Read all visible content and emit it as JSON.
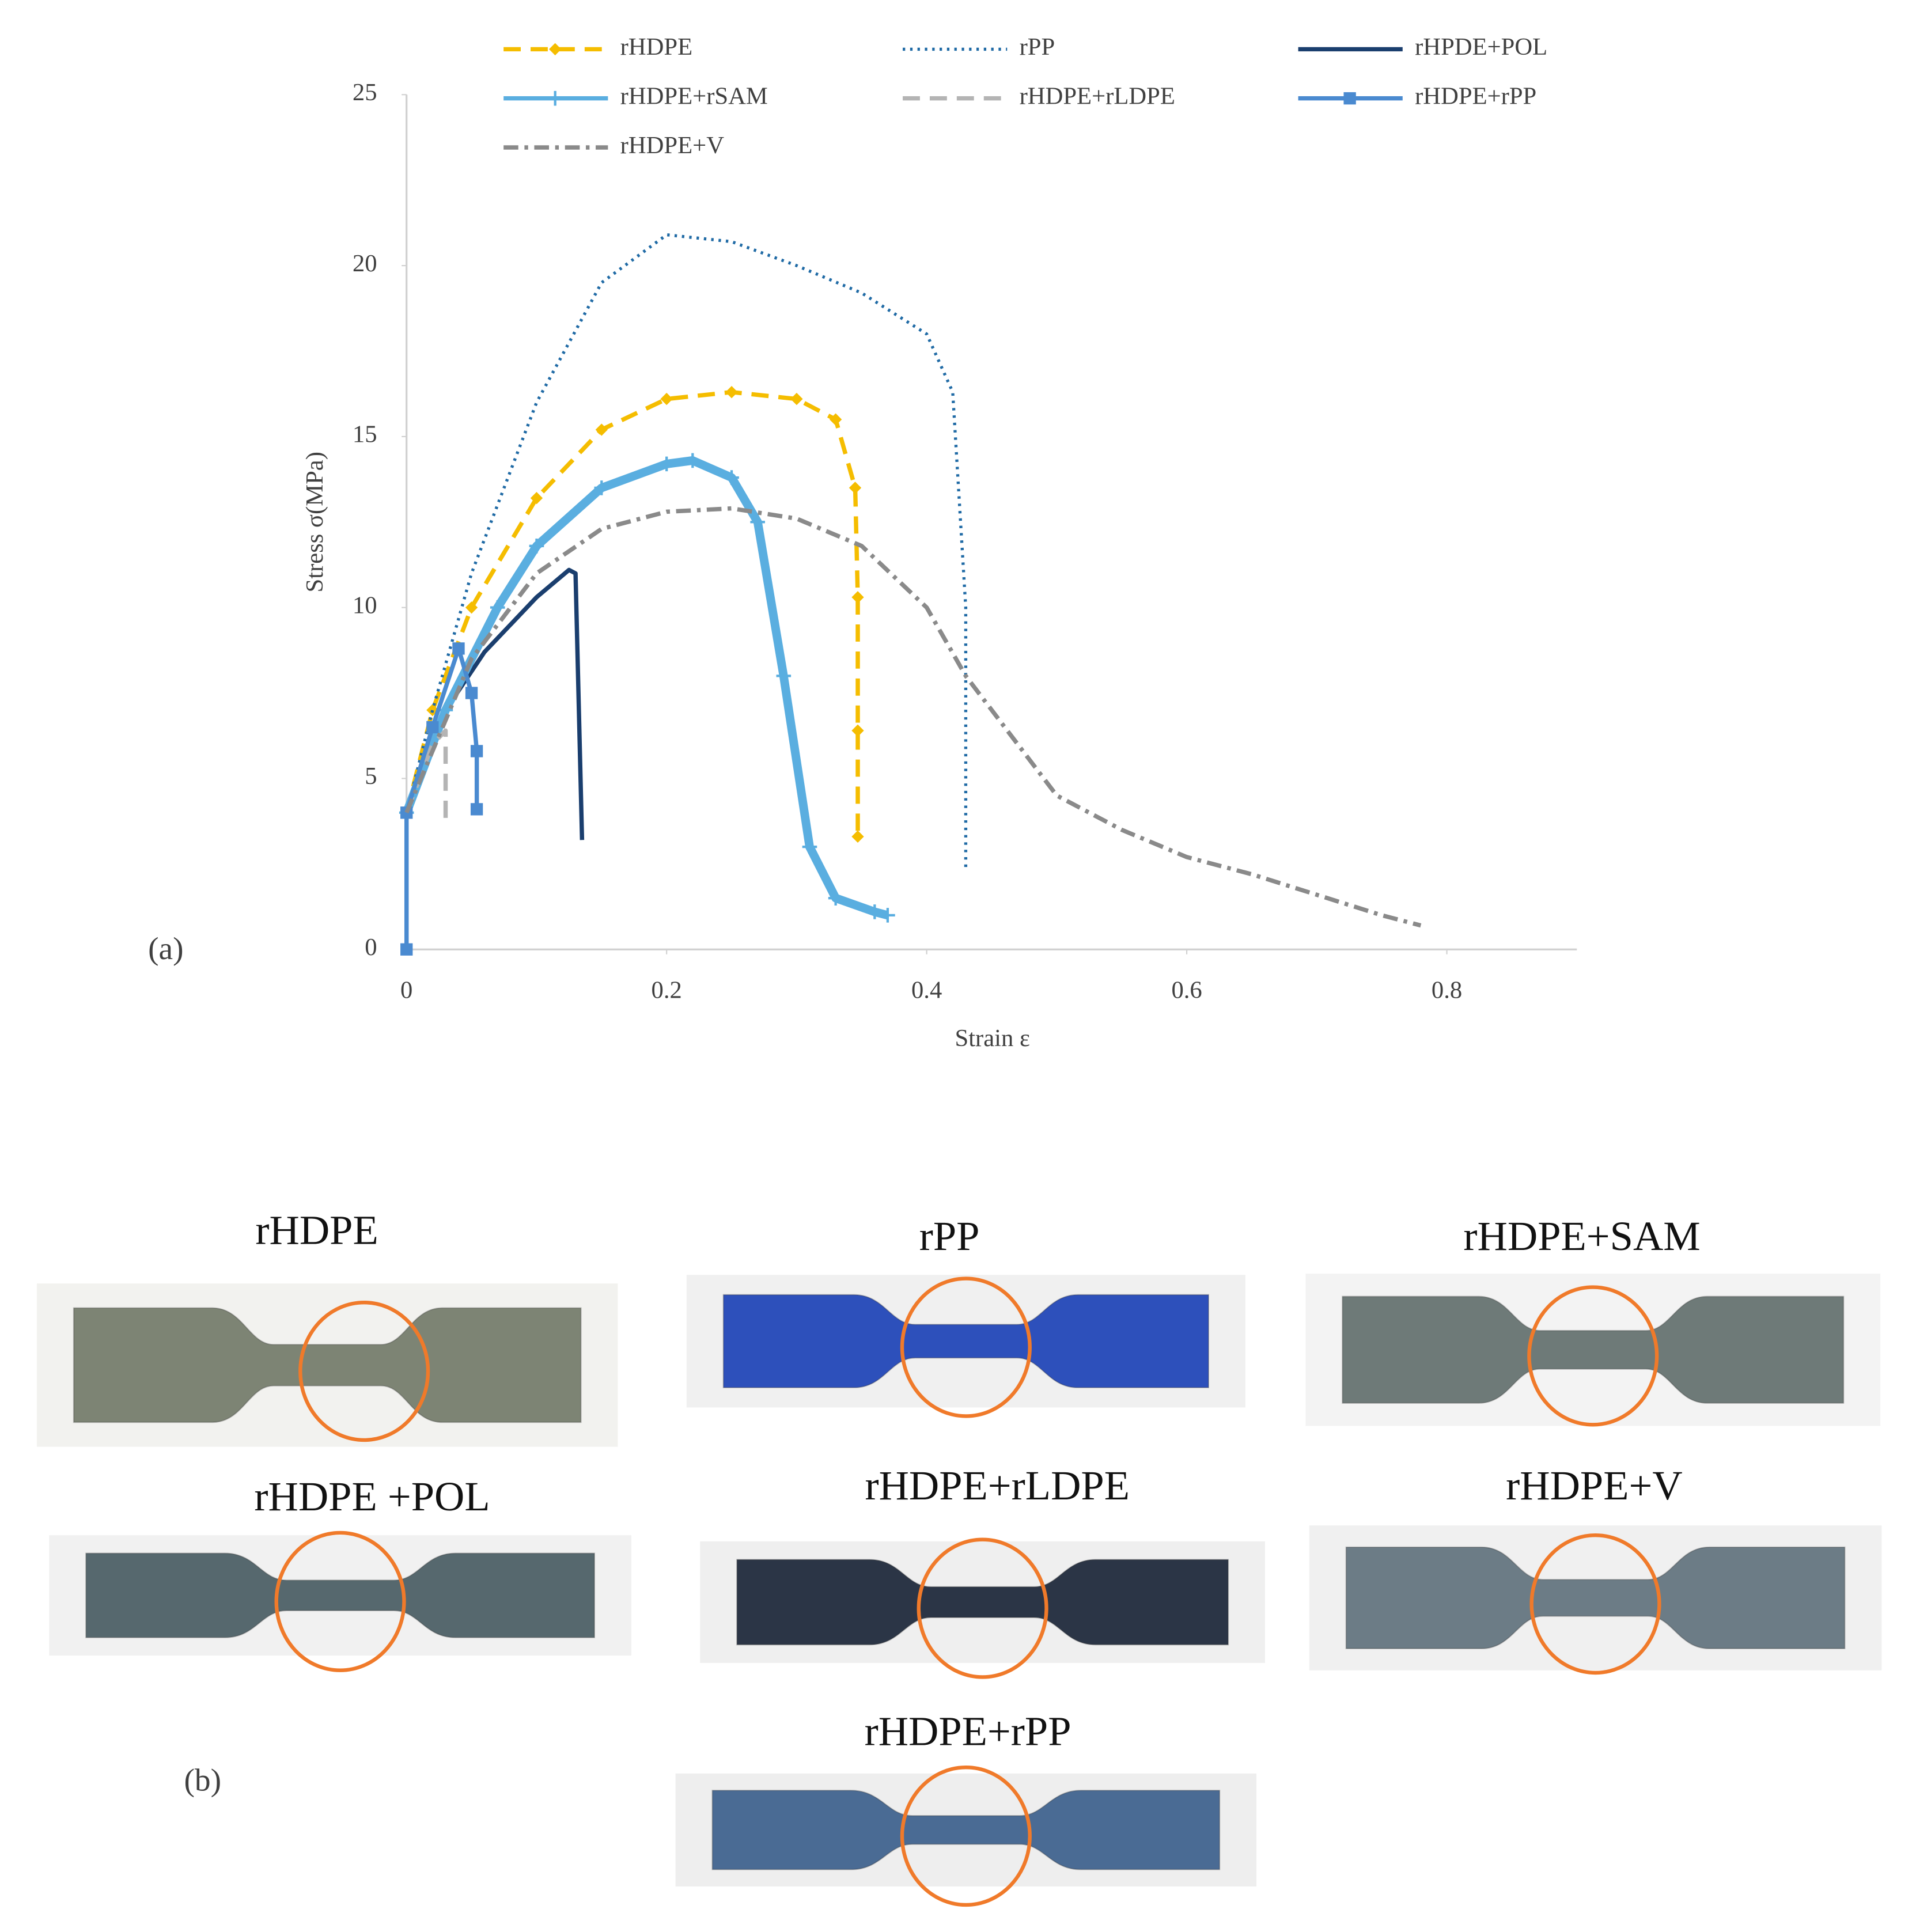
{
  "chart_data": {
    "type": "line",
    "x_label": "Strain ε",
    "y_label": "Stress σ(MPa)",
    "xlim": [
      0,
      0.9
    ],
    "ylim": [
      0,
      25
    ],
    "xticks": [
      0,
      0.2,
      0.4,
      0.6,
      0.8
    ],
    "yticks": [
      0,
      5,
      10,
      15,
      20,
      25
    ],
    "grid": false,
    "series": [
      {
        "name": "rHDPE",
        "color": "#f5bd00",
        "dash": "dashed",
        "marker": "diamond",
        "x": [
          0,
          0.02,
          0.05,
          0.1,
          0.15,
          0.2,
          0.25,
          0.3,
          0.33,
          0.345,
          0.347,
          0.347,
          0.347
        ],
        "values": [
          4,
          7,
          10,
          13.2,
          15.2,
          16.1,
          16.3,
          16.1,
          15.5,
          13.5,
          10.3,
          6.4,
          3.3
        ]
      },
      {
        "name": "rPP",
        "color": "#1f6aa5",
        "dash": "dotted",
        "marker": "none",
        "x": [
          0,
          0.02,
          0.05,
          0.1,
          0.15,
          0.2,
          0.25,
          0.3,
          0.35,
          0.4,
          0.42,
          0.43,
          0.43
        ],
        "values": [
          4,
          7,
          11,
          16,
          19.5,
          20.9,
          20.7,
          20,
          19.2,
          18,
          16.3,
          10,
          2.3
        ]
      },
      {
        "name": "rHPDE+POL",
        "color": "#1a3e6e",
        "dash": "solid",
        "marker": "none",
        "x": [
          0,
          0.03,
          0.06,
          0.1,
          0.125,
          0.13,
          0.135
        ],
        "values": [
          4,
          7,
          8.7,
          10.3,
          11.1,
          11,
          3.2
        ]
      },
      {
        "name": "rHDPE+rSAM",
        "color": "#5aaee0",
        "dash": "solid",
        "marker": "plus",
        "x": [
          0,
          0.03,
          0.07,
          0.1,
          0.15,
          0.2,
          0.22,
          0.25,
          0.27,
          0.29,
          0.31,
          0.33,
          0.36,
          0.37
        ],
        "values": [
          4,
          7,
          10,
          11.8,
          13.5,
          14.2,
          14.3,
          13.8,
          12.5,
          8,
          3,
          1.5,
          1.1,
          1
        ]
      },
      {
        "name": "rHDPE+rLDPE",
        "color": "#b4b4b4",
        "dash": "dashed",
        "marker": "none",
        "x": [
          0,
          0.02,
          0.03,
          0.03
        ],
        "values": [
          4,
          6,
          6.4,
          3.7
        ]
      },
      {
        "name": "rHDPE+rPP",
        "color": "#4a8ad0",
        "dash": "solid",
        "marker": "square",
        "x": [
          0,
          0,
          0.02,
          0.04,
          0.05,
          0.054,
          0.054
        ],
        "values": [
          0,
          4,
          6.5,
          8.8,
          7.5,
          5.8,
          4.1
        ]
      },
      {
        "name": "rHDPE+V",
        "color": "#8a8a8a",
        "dash": "dashdot",
        "marker": "none",
        "x": [
          0,
          0.05,
          0.1,
          0.15,
          0.2,
          0.25,
          0.3,
          0.35,
          0.4,
          0.43,
          0.46,
          0.5,
          0.55,
          0.6,
          0.65,
          0.7,
          0.75,
          0.78
        ],
        "values": [
          4,
          8.5,
          11,
          12.3,
          12.8,
          12.9,
          12.6,
          11.8,
          10,
          8,
          6.5,
          4.5,
          3.5,
          2.7,
          2.2,
          1.6,
          1,
          0.7
        ]
      }
    ]
  },
  "figure": {
    "panel_labels": [
      "(a)",
      "(b)"
    ],
    "specimens": [
      {
        "label": "rHDPE"
      },
      {
        "label": "rPP"
      },
      {
        "label": "rHDPE+SAM"
      },
      {
        "label": "rHDPE +POL"
      },
      {
        "label": "rHDPE+rLDPE"
      },
      {
        "label": "rHDPE+V"
      },
      {
        "label": "rHDPE+rPP"
      }
    ]
  }
}
